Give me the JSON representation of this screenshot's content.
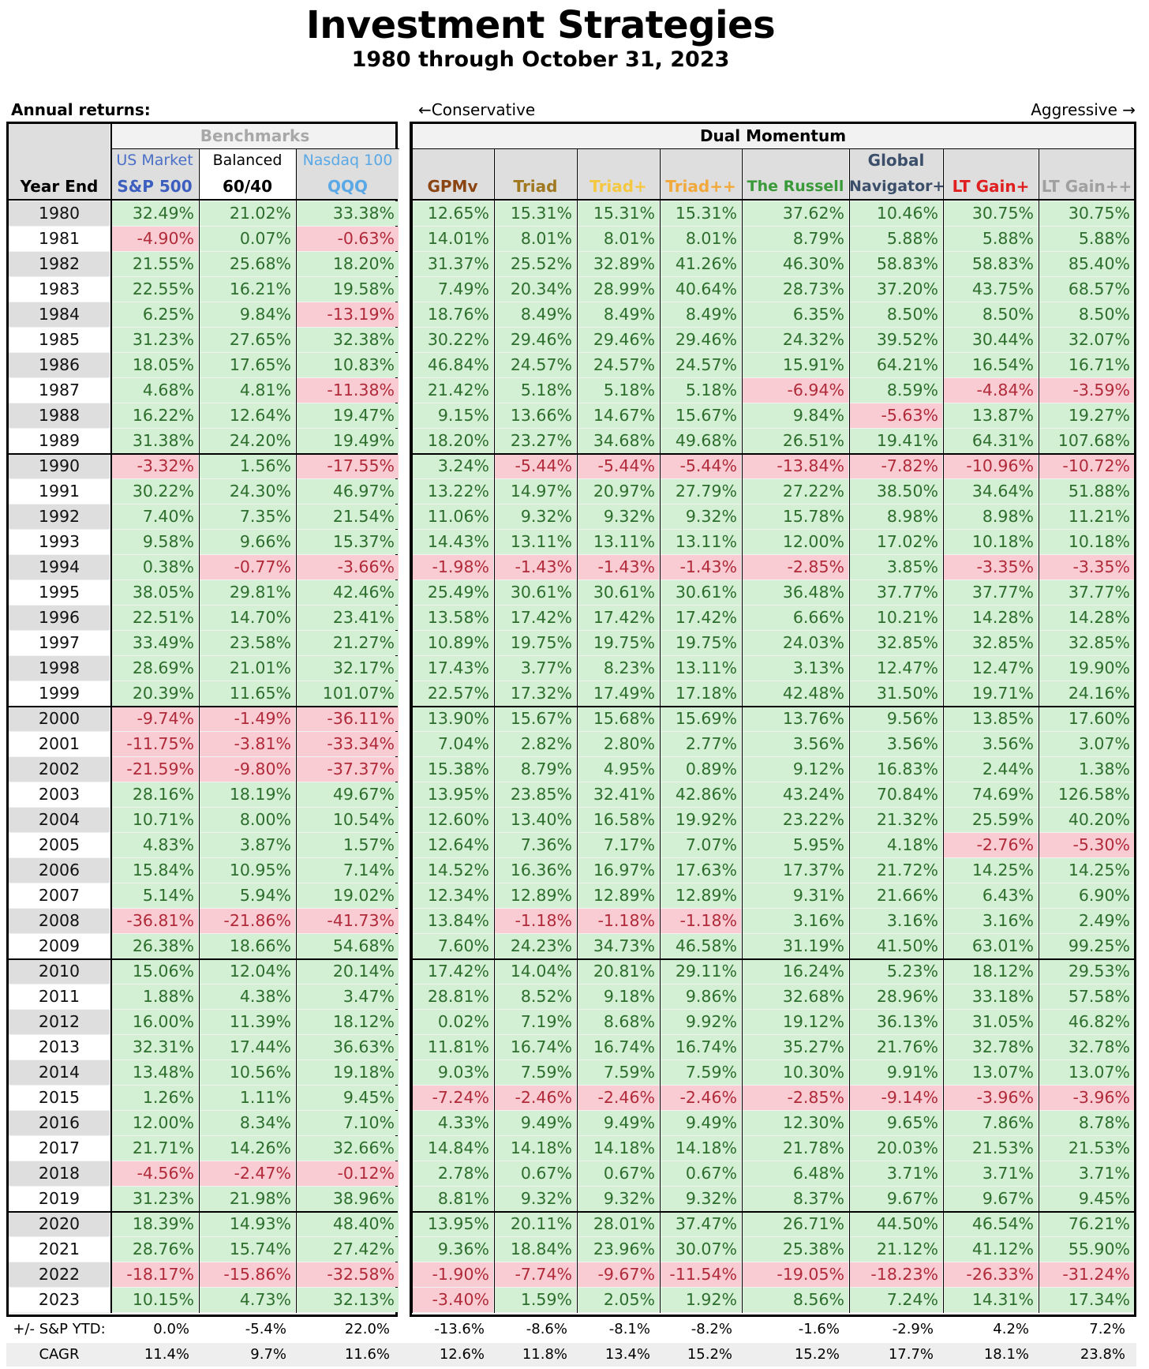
{
  "title": "Investment Strategies",
  "subtitle": "1980 through October 31, 2023",
  "labels": {
    "annual_returns": "Annual returns:",
    "conservative": "←Conservative",
    "aggressive": "Aggressive →",
    "benchmarks": "Benchmarks",
    "dual_momentum": "Dual Momentum",
    "year_end": "Year End"
  },
  "colors": {
    "positive_bg": "#d3efd4",
    "positive_text": "#2d6e2d",
    "negative_bg": "#f8ccd2",
    "negative_text": "#b02a3a"
  },
  "columns": [
    {
      "sub": "US Market",
      "sub_color": "#4a6fc7",
      "name": "S&P 500",
      "name_color": "#3c5fbf"
    },
    {
      "sub": "Balanced",
      "sub_color": "#000000",
      "name": "60/40",
      "name_color": "#000000"
    },
    {
      "sub": "Nasdaq 100",
      "sub_color": "#5aa9e6",
      "name": "QQQ",
      "name_color": "#5aa9e6"
    },
    {
      "sub": "",
      "sub_color": "#000000",
      "name": "GPMv",
      "name_color": "#8b4513"
    },
    {
      "sub": "",
      "sub_color": "#000000",
      "name": "Triad",
      "name_color": "#a07820"
    },
    {
      "sub": "",
      "sub_color": "#000000",
      "name": "Triad+",
      "name_color": "#f5c842"
    },
    {
      "sub": "",
      "sub_color": "#000000",
      "name": "Triad++",
      "name_color": "#f2a93b"
    },
    {
      "sub": "",
      "sub_color": "#000000",
      "name": "The Russell",
      "name_color": "#3a9a3a"
    },
    {
      "sub": "Global",
      "sub_color": "#3b4f6b",
      "name": "Navigator+",
      "name_color": "#3b4f6b"
    },
    {
      "sub": "",
      "sub_color": "#000000",
      "name": "LT Gain+",
      "name_color": "#e02020"
    },
    {
      "sub": "",
      "sub_color": "#000000",
      "name": "LT Gain++",
      "name_color": "#a0a0a0"
    }
  ],
  "rows": [
    {
      "year": "1980",
      "values": [
        "32.49%",
        "21.02%",
        "33.38%",
        "12.65%",
        "15.31%",
        "15.31%",
        "15.31%",
        "37.62%",
        "10.46%",
        "30.75%",
        "30.75%"
      ]
    },
    {
      "year": "1981",
      "values": [
        "-4.90%",
        "0.07%",
        "-0.63%",
        "14.01%",
        "8.01%",
        "8.01%",
        "8.01%",
        "8.79%",
        "5.88%",
        "5.88%",
        "5.88%"
      ]
    },
    {
      "year": "1982",
      "values": [
        "21.55%",
        "25.68%",
        "18.20%",
        "31.37%",
        "25.52%",
        "32.89%",
        "41.26%",
        "46.30%",
        "58.83%",
        "58.83%",
        "85.40%"
      ]
    },
    {
      "year": "1983",
      "values": [
        "22.55%",
        "16.21%",
        "19.58%",
        "7.49%",
        "20.34%",
        "28.99%",
        "40.64%",
        "28.73%",
        "37.20%",
        "43.75%",
        "68.57%"
      ]
    },
    {
      "year": "1984",
      "values": [
        "6.25%",
        "9.84%",
        "-13.19%",
        "18.76%",
        "8.49%",
        "8.49%",
        "8.49%",
        "6.35%",
        "8.50%",
        "8.50%",
        "8.50%"
      ]
    },
    {
      "year": "1985",
      "values": [
        "31.23%",
        "27.65%",
        "32.38%",
        "30.22%",
        "29.46%",
        "29.46%",
        "29.46%",
        "24.32%",
        "39.52%",
        "30.44%",
        "32.07%"
      ]
    },
    {
      "year": "1986",
      "values": [
        "18.05%",
        "17.65%",
        "10.83%",
        "46.84%",
        "24.57%",
        "24.57%",
        "24.57%",
        "15.91%",
        "64.21%",
        "16.54%",
        "16.71%"
      ]
    },
    {
      "year": "1987",
      "values": [
        "4.68%",
        "4.81%",
        "-11.38%",
        "21.42%",
        "5.18%",
        "5.18%",
        "5.18%",
        "-6.94%",
        "8.59%",
        "-4.84%",
        "-3.59%"
      ]
    },
    {
      "year": "1988",
      "values": [
        "16.22%",
        "12.64%",
        "19.47%",
        "9.15%",
        "13.66%",
        "14.67%",
        "15.67%",
        "9.84%",
        "-5.63%",
        "13.87%",
        "19.27%"
      ]
    },
    {
      "year": "1989",
      "values": [
        "31.38%",
        "24.20%",
        "19.49%",
        "18.20%",
        "23.27%",
        "34.68%",
        "49.68%",
        "26.51%",
        "19.41%",
        "64.31%",
        "107.68%"
      ]
    },
    {
      "year": "1990",
      "values": [
        "-3.32%",
        "1.56%",
        "-17.55%",
        "3.24%",
        "-5.44%",
        "-5.44%",
        "-5.44%",
        "-13.84%",
        "-7.82%",
        "-10.96%",
        "-10.72%"
      ]
    },
    {
      "year": "1991",
      "values": [
        "30.22%",
        "24.30%",
        "46.97%",
        "13.22%",
        "14.97%",
        "20.97%",
        "27.79%",
        "27.22%",
        "38.50%",
        "34.64%",
        "51.88%"
      ]
    },
    {
      "year": "1992",
      "values": [
        "7.40%",
        "7.35%",
        "21.54%",
        "11.06%",
        "9.32%",
        "9.32%",
        "9.32%",
        "15.78%",
        "8.98%",
        "8.98%",
        "11.21%"
      ]
    },
    {
      "year": "1993",
      "values": [
        "9.58%",
        "9.66%",
        "15.37%",
        "14.43%",
        "13.11%",
        "13.11%",
        "13.11%",
        "12.00%",
        "17.02%",
        "10.18%",
        "10.18%"
      ]
    },
    {
      "year": "1994",
      "values": [
        "0.38%",
        "-0.77%",
        "-3.66%",
        "-1.98%",
        "-1.43%",
        "-1.43%",
        "-1.43%",
        "-2.85%",
        "3.85%",
        "-3.35%",
        "-3.35%"
      ]
    },
    {
      "year": "1995",
      "values": [
        "38.05%",
        "29.81%",
        "42.46%",
        "25.49%",
        "30.61%",
        "30.61%",
        "30.61%",
        "36.48%",
        "37.77%",
        "37.77%",
        "37.77%"
      ]
    },
    {
      "year": "1996",
      "values": [
        "22.51%",
        "14.70%",
        "23.41%",
        "13.58%",
        "17.42%",
        "17.42%",
        "17.42%",
        "6.66%",
        "10.21%",
        "14.28%",
        "14.28%"
      ]
    },
    {
      "year": "1997",
      "values": [
        "33.49%",
        "23.58%",
        "21.27%",
        "10.89%",
        "19.75%",
        "19.75%",
        "19.75%",
        "24.03%",
        "32.85%",
        "32.85%",
        "32.85%"
      ]
    },
    {
      "year": "1998",
      "values": [
        "28.69%",
        "21.01%",
        "32.17%",
        "17.43%",
        "3.77%",
        "8.23%",
        "13.11%",
        "3.13%",
        "12.47%",
        "12.47%",
        "19.90%"
      ]
    },
    {
      "year": "1999",
      "values": [
        "20.39%",
        "11.65%",
        "101.07%",
        "22.57%",
        "17.32%",
        "17.49%",
        "17.18%",
        "42.48%",
        "31.50%",
        "19.71%",
        "24.16%"
      ]
    },
    {
      "year": "2000",
      "values": [
        "-9.74%",
        "-1.49%",
        "-36.11%",
        "13.90%",
        "15.67%",
        "15.68%",
        "15.69%",
        "13.76%",
        "9.56%",
        "13.85%",
        "17.60%"
      ]
    },
    {
      "year": "2001",
      "values": [
        "-11.75%",
        "-3.81%",
        "-33.34%",
        "7.04%",
        "2.82%",
        "2.80%",
        "2.77%",
        "3.56%",
        "3.56%",
        "3.56%",
        "3.07%"
      ]
    },
    {
      "year": "2002",
      "values": [
        "-21.59%",
        "-9.80%",
        "-37.37%",
        "15.38%",
        "8.79%",
        "4.95%",
        "0.89%",
        "9.12%",
        "16.83%",
        "2.44%",
        "1.38%"
      ]
    },
    {
      "year": "2003",
      "values": [
        "28.16%",
        "18.19%",
        "49.67%",
        "13.95%",
        "23.85%",
        "32.41%",
        "42.86%",
        "43.24%",
        "70.84%",
        "74.69%",
        "126.58%"
      ]
    },
    {
      "year": "2004",
      "values": [
        "10.71%",
        "8.00%",
        "10.54%",
        "12.60%",
        "13.40%",
        "16.58%",
        "19.92%",
        "23.22%",
        "21.32%",
        "25.59%",
        "40.20%"
      ]
    },
    {
      "year": "2005",
      "values": [
        "4.83%",
        "3.87%",
        "1.57%",
        "12.64%",
        "7.36%",
        "7.17%",
        "7.07%",
        "5.95%",
        "4.18%",
        "-2.76%",
        "-5.30%"
      ]
    },
    {
      "year": "2006",
      "values": [
        "15.84%",
        "10.95%",
        "7.14%",
        "14.52%",
        "16.36%",
        "16.97%",
        "17.63%",
        "17.37%",
        "21.72%",
        "14.25%",
        "14.25%"
      ]
    },
    {
      "year": "2007",
      "values": [
        "5.14%",
        "5.94%",
        "19.02%",
        "12.34%",
        "12.89%",
        "12.89%",
        "12.89%",
        "9.31%",
        "21.66%",
        "6.43%",
        "6.90%"
      ]
    },
    {
      "year": "2008",
      "values": [
        "-36.81%",
        "-21.86%",
        "-41.73%",
        "13.84%",
        "-1.18%",
        "-1.18%",
        "-1.18%",
        "3.16%",
        "3.16%",
        "3.16%",
        "2.49%"
      ]
    },
    {
      "year": "2009",
      "values": [
        "26.38%",
        "18.66%",
        "54.68%",
        "7.60%",
        "24.23%",
        "34.73%",
        "46.58%",
        "31.19%",
        "41.50%",
        "63.01%",
        "99.25%"
      ]
    },
    {
      "year": "2010",
      "values": [
        "15.06%",
        "12.04%",
        "20.14%",
        "17.42%",
        "14.04%",
        "20.81%",
        "29.11%",
        "16.24%",
        "5.23%",
        "18.12%",
        "29.53%"
      ]
    },
    {
      "year": "2011",
      "values": [
        "1.88%",
        "4.38%",
        "3.47%",
        "28.81%",
        "8.52%",
        "9.18%",
        "9.86%",
        "32.68%",
        "28.96%",
        "33.18%",
        "57.58%"
      ]
    },
    {
      "year": "2012",
      "values": [
        "16.00%",
        "11.39%",
        "18.12%",
        "0.02%",
        "7.19%",
        "8.68%",
        "9.92%",
        "19.12%",
        "36.13%",
        "31.05%",
        "46.82%"
      ]
    },
    {
      "year": "2013",
      "values": [
        "32.31%",
        "17.44%",
        "36.63%",
        "11.81%",
        "16.74%",
        "16.74%",
        "16.74%",
        "35.27%",
        "21.76%",
        "32.78%",
        "32.78%"
      ]
    },
    {
      "year": "2014",
      "values": [
        "13.48%",
        "10.56%",
        "19.18%",
        "9.03%",
        "7.59%",
        "7.59%",
        "7.59%",
        "10.30%",
        "9.91%",
        "13.07%",
        "13.07%"
      ]
    },
    {
      "year": "2015",
      "values": [
        "1.26%",
        "1.11%",
        "9.45%",
        "-7.24%",
        "-2.46%",
        "-2.46%",
        "-2.46%",
        "-2.85%",
        "-9.14%",
        "-3.96%",
        "-3.96%"
      ]
    },
    {
      "year": "2016",
      "values": [
        "12.00%",
        "8.34%",
        "7.10%",
        "4.33%",
        "9.49%",
        "9.49%",
        "9.49%",
        "12.30%",
        "9.65%",
        "7.86%",
        "8.78%"
      ]
    },
    {
      "year": "2017",
      "values": [
        "21.71%",
        "14.26%",
        "32.66%",
        "14.84%",
        "14.18%",
        "14.18%",
        "14.18%",
        "21.78%",
        "20.03%",
        "21.53%",
        "21.53%"
      ]
    },
    {
      "year": "2018",
      "values": [
        "-4.56%",
        "-2.47%",
        "-0.12%",
        "2.78%",
        "0.67%",
        "0.67%",
        "0.67%",
        "6.48%",
        "3.71%",
        "3.71%",
        "3.71%"
      ]
    },
    {
      "year": "2019",
      "values": [
        "31.23%",
        "21.98%",
        "38.96%",
        "8.81%",
        "9.32%",
        "9.32%",
        "9.32%",
        "8.37%",
        "9.67%",
        "9.67%",
        "9.45%"
      ]
    },
    {
      "year": "2020",
      "values": [
        "18.39%",
        "14.93%",
        "48.40%",
        "13.95%",
        "20.11%",
        "28.01%",
        "37.47%",
        "26.71%",
        "44.50%",
        "46.54%",
        "76.21%"
      ]
    },
    {
      "year": "2021",
      "values": [
        "28.76%",
        "15.74%",
        "27.42%",
        "9.36%",
        "18.84%",
        "23.96%",
        "30.07%",
        "25.38%",
        "21.12%",
        "41.12%",
        "55.90%"
      ]
    },
    {
      "year": "2022",
      "values": [
        "-18.17%",
        "-15.86%",
        "-32.58%",
        "-1.90%",
        "-7.74%",
        "-9.67%",
        "-11.54%",
        "-19.05%",
        "-18.23%",
        "-26.33%",
        "-31.24%"
      ]
    },
    {
      "year": "2023",
      "values": [
        "10.15%",
        "4.73%",
        "32.13%",
        "-3.40%",
        "1.59%",
        "2.05%",
        "1.92%",
        "8.56%",
        "7.24%",
        "14.31%",
        "17.34%"
      ]
    }
  ],
  "footer": [
    {
      "label": "+/- S&P YTD:",
      "values": [
        "0.0%",
        "-5.4%",
        "22.0%",
        "-13.6%",
        "-8.6%",
        "-8.1%",
        "-8.2%",
        "-1.6%",
        "-2.9%",
        "4.2%",
        "7.2%"
      ]
    },
    {
      "label": "CAGR",
      "values": [
        "11.4%",
        "9.7%",
        "11.6%",
        "12.6%",
        "11.8%",
        "13.4%",
        "15.2%",
        "15.2%",
        "17.7%",
        "18.1%",
        "23.8%"
      ]
    }
  ]
}
